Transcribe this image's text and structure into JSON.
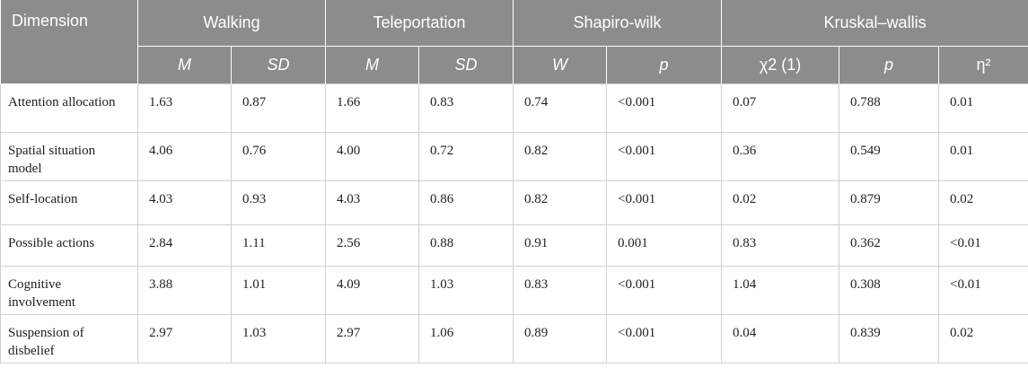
{
  "header": {
    "dimension": "Dimension",
    "groups": [
      "Walking",
      "Teleportation",
      "Shapiro-wilk",
      "Kruskal–wallis"
    ],
    "subheaders": [
      "M",
      "SD",
      "M",
      "SD",
      "W",
      "p",
      "χ2 (1)",
      "p",
      "η²"
    ]
  },
  "rows": [
    {
      "dimension": "Attention allocation",
      "values": [
        "1.63",
        "0.87",
        "1.66",
        "0.83",
        "0.74",
        "<0.001",
        "0.07",
        "0.788",
        "0.01"
      ]
    },
    {
      "dimension": "Spatial situation model",
      "values": [
        "4.06",
        "0.76",
        "4.00",
        "0.72",
        "0.82",
        "<0.001",
        "0.36",
        "0.549",
        "0.01"
      ]
    },
    {
      "dimension": "Self-location",
      "values": [
        "4.03",
        "0.93",
        "4.03",
        "0.86",
        "0.82",
        "<0.001",
        "0.02",
        "0.879",
        "0.02"
      ]
    },
    {
      "dimension": "Possible actions",
      "values": [
        "2.84",
        "1.11",
        "2.56",
        "0.88",
        "0.91",
        "0.001",
        "0.83",
        "0.362",
        "<0.01"
      ]
    },
    {
      "dimension": "Cognitive involvement",
      "values": [
        "3.88",
        "1.01",
        "4.09",
        "1.03",
        "0.83",
        "<0.001",
        "1.04",
        "0.308",
        "<0.01"
      ]
    },
    {
      "dimension": "Suspension of disbelief",
      "values": [
        "2.97",
        "1.03",
        "2.97",
        "1.06",
        "0.89",
        "<0.001",
        "0.04",
        "0.839",
        "0.02"
      ]
    }
  ]
}
